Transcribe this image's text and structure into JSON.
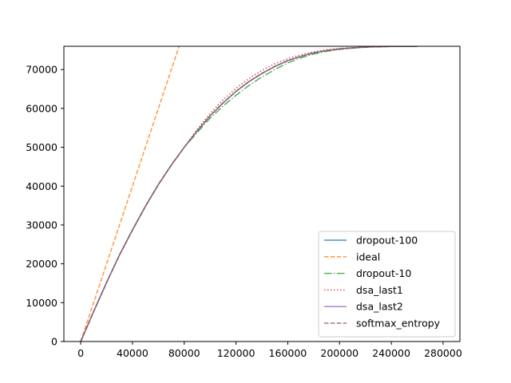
{
  "chart_data": {
    "type": "line",
    "title": "",
    "xlabel": "",
    "ylabel": "",
    "xlim": [
      -13000,
      293000
    ],
    "ylim": [
      0,
      76000
    ],
    "xticks": [
      0,
      40000,
      80000,
      120000,
      160000,
      200000,
      240000,
      280000
    ],
    "yticks": [
      0,
      10000,
      20000,
      30000,
      40000,
      50000,
      60000,
      70000
    ],
    "grid": false,
    "legend_position": "lower-right",
    "series": [
      {
        "name": "dropout-100",
        "color": "#1f77b4",
        "style": "solid",
        "x": [
          0,
          10000,
          20000,
          30000,
          40000,
          50000,
          60000,
          70000,
          80000,
          90000,
          100000,
          110000,
          120000,
          130000,
          140000,
          150000,
          160000,
          170000,
          180000,
          190000,
          200000,
          210000,
          220000,
          230000,
          240000,
          250000,
          260000
        ],
        "y": [
          0,
          7700,
          15200,
          22300,
          28700,
          34800,
          40400,
          45400,
          50000,
          54200,
          58100,
          61400,
          64400,
          66900,
          69000,
          70800,
          72300,
          73400,
          74300,
          74900,
          75300,
          75600,
          75800,
          75900,
          75950,
          75980,
          76000
        ]
      },
      {
        "name": "ideal",
        "color": "#ff7f0e",
        "style": "dashed",
        "x": [
          0,
          76000
        ],
        "y": [
          0,
          76000
        ]
      },
      {
        "name": "dropout-10",
        "color": "#2ca02c",
        "style": "dashdot",
        "x": [
          0,
          10000,
          20000,
          30000,
          40000,
          50000,
          60000,
          70000,
          80000,
          90000,
          100000,
          110000,
          120000,
          130000,
          140000,
          150000,
          160000,
          170000,
          180000,
          190000,
          200000,
          210000,
          220000,
          230000,
          240000,
          250000,
          260000
        ],
        "y": [
          0,
          7700,
          15200,
          22300,
          28700,
          34800,
          40400,
          45400,
          50000,
          53800,
          57500,
          60600,
          63400,
          65900,
          68100,
          70000,
          71700,
          73000,
          74000,
          74700,
          75200,
          75500,
          75750,
          75880,
          75950,
          75980,
          76000
        ]
      },
      {
        "name": "dsa_last1",
        "color": "#d62728",
        "style": "dotted",
        "x": [
          0,
          10000,
          20000,
          30000,
          40000,
          50000,
          60000,
          70000,
          80000,
          90000,
          100000,
          110000,
          120000,
          130000,
          140000,
          150000,
          160000,
          170000,
          180000,
          190000,
          200000,
          210000,
          220000,
          230000,
          240000,
          250000,
          260000
        ],
        "y": [
          0,
          7700,
          15200,
          22300,
          28700,
          34800,
          40400,
          45400,
          50000,
          54600,
          58700,
          62200,
          65200,
          67700,
          69800,
          71500,
          72800,
          73800,
          74600,
          75100,
          75450,
          75650,
          75820,
          75900,
          75950,
          75980,
          76000
        ]
      },
      {
        "name": "dsa_last2",
        "color": "#9467bd",
        "style": "solid",
        "x": [
          0,
          10000,
          20000,
          30000,
          40000,
          50000,
          60000,
          70000,
          80000,
          90000,
          100000,
          110000,
          120000,
          130000,
          140000,
          150000,
          160000,
          170000,
          180000,
          190000,
          200000,
          210000,
          220000,
          230000,
          240000,
          250000,
          260000
        ],
        "y": [
          0,
          7700,
          15200,
          22300,
          28700,
          34800,
          40400,
          45400,
          50000,
          54200,
          58100,
          61400,
          64400,
          66900,
          69000,
          70800,
          72300,
          73400,
          74300,
          74900,
          75300,
          75600,
          75800,
          75900,
          75950,
          75980,
          76000
        ]
      },
      {
        "name": "softmax_entropy",
        "color": "#8c564b",
        "style": "dashed",
        "x": [
          0,
          10000,
          20000,
          30000,
          40000,
          50000,
          60000,
          70000,
          80000,
          90000,
          100000,
          110000,
          120000,
          130000,
          140000,
          150000,
          160000,
          170000,
          180000,
          190000,
          200000,
          210000,
          220000,
          230000,
          240000,
          250000,
          260000
        ],
        "y": [
          0,
          7700,
          15200,
          22300,
          28700,
          34800,
          40400,
          45400,
          50000,
          54200,
          58100,
          61400,
          64400,
          66900,
          69000,
          70800,
          72300,
          73400,
          74300,
          74900,
          75300,
          75600,
          75800,
          75900,
          75950,
          75980,
          76000
        ]
      }
    ]
  }
}
